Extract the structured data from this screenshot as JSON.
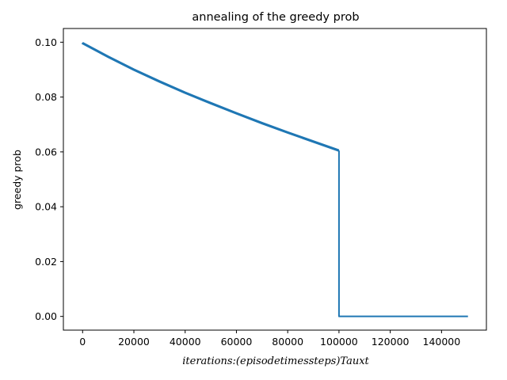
{
  "chart_data": {
    "type": "line",
    "title": "annealing of the greedy prob",
    "xlabel": "iterations:(episodetimessteps)Tauxt",
    "ylabel": "greedy prob",
    "xlim": [
      -7500,
      157500
    ],
    "ylim": [
      -0.005,
      0.105
    ],
    "xticks": [
      0,
      20000,
      40000,
      60000,
      80000,
      100000,
      120000,
      140000
    ],
    "yticks": [
      0.0,
      0.02,
      0.04,
      0.06,
      0.08,
      0.1
    ],
    "xtick_labels": [
      "0",
      "20000",
      "40000",
      "60000",
      "80000",
      "100000",
      "120000",
      "140000"
    ],
    "ytick_labels": [
      "0.00",
      "0.02",
      "0.04",
      "0.06",
      "0.08",
      "0.10"
    ],
    "grid": false,
    "legend": "none",
    "series": [
      {
        "color": "#1f77b4",
        "x": [
          0,
          10000,
          20000,
          30000,
          40000,
          50000,
          60000,
          70000,
          80000,
          90000,
          100000,
          100000,
          150000
        ],
        "y": [
          0.0995,
          0.0945,
          0.0898,
          0.0855,
          0.0814,
          0.0776,
          0.0739,
          0.0703,
          0.0669,
          0.0636,
          0.0603,
          0.0,
          0.0
        ]
      }
    ]
  }
}
